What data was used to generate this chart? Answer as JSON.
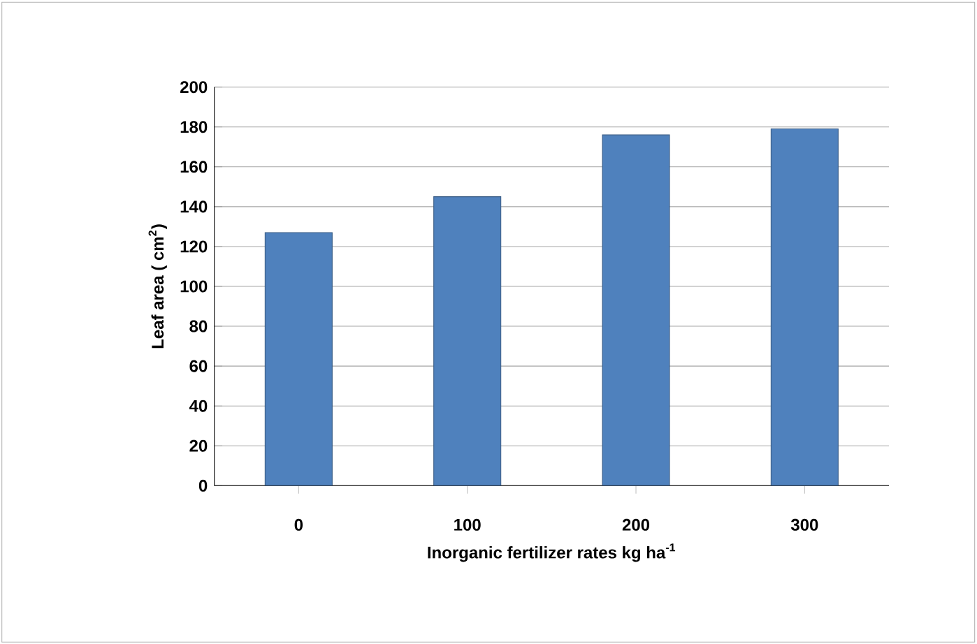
{
  "chart_data": {
    "type": "bar",
    "xlabel": "Inorganic fertilizer rates  kg ha$^{-1}$",
    "ylabel": "Leaf  area ( cm$^{2}$)",
    "categories": [
      "0",
      "100",
      "200",
      "300"
    ],
    "values": [
      127,
      145,
      176,
      179
    ],
    "color": "#4f81bd",
    "ylim": [
      0,
      200
    ],
    "yticks": [
      0,
      20,
      40,
      60,
      80,
      100,
      120,
      140,
      160,
      180,
      200
    ],
    "grid": "y"
  }
}
